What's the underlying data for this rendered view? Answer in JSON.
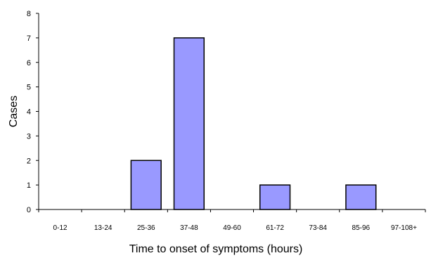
{
  "chart_data": {
    "type": "bar",
    "title": "",
    "xlabel": "Time to onset of symptoms (hours)",
    "ylabel": "Cases",
    "categories": [
      "0-12",
      "13-24",
      "25-36",
      "37-48",
      "49-60",
      "61-72",
      "73-84",
      "85-96",
      "97-108+"
    ],
    "values": [
      0,
      0,
      2,
      7,
      0,
      1,
      0,
      1,
      0
    ],
    "ylim": [
      0,
      8
    ],
    "yticks": [
      0,
      1,
      2,
      3,
      4,
      5,
      6,
      7,
      8
    ],
    "grid": false,
    "legend": "none",
    "colors": {
      "bar_fill": "#9999ff",
      "bar_stroke": "#000000",
      "axis": "#000000"
    }
  }
}
